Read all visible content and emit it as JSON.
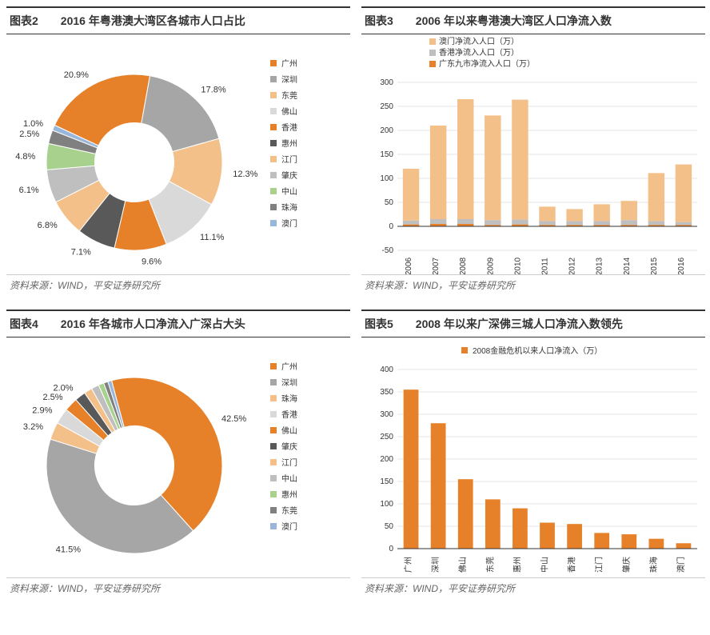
{
  "source_text": "资料来源：WIND，平安证券研究所",
  "chart2": {
    "title": "图表2　　2016 年粤港澳大湾区各城市人口占比",
    "type": "donut",
    "inner_radius_ratio": 0.45,
    "slices": [
      {
        "label": "广州",
        "value": 20.9,
        "color": "#e6812a",
        "text": "20.9%"
      },
      {
        "label": "深圳",
        "value": 17.8,
        "color": "#a6a6a6",
        "text": "17.8%"
      },
      {
        "label": "东莞",
        "value": 12.3,
        "color": "#f4c08a",
        "text": "12.3%"
      },
      {
        "label": "佛山",
        "value": 11.1,
        "color": "#d9d9d9",
        "text": "11.1%"
      },
      {
        "label": "香港",
        "value": 9.6,
        "color": "#e6812a",
        "text": "9.6%"
      },
      {
        "label": "惠州",
        "value": 7.1,
        "color": "#595959",
        "text": "7.1%"
      },
      {
        "label": "江门",
        "value": 6.8,
        "color": "#f4c08a",
        "text": "6.8%"
      },
      {
        "label": "肇庆",
        "value": 6.1,
        "color": "#bfbfbf",
        "text": "6.1%"
      },
      {
        "label": "中山",
        "value": 4.8,
        "color": "#a9d18e",
        "text": "4.8%"
      },
      {
        "label": "珠海",
        "value": 2.5,
        "color": "#808080",
        "text": "2.5%"
      },
      {
        "label": "澳门",
        "value": 1.0,
        "color": "#9ab7d9",
        "text": "1.0%"
      }
    ],
    "start_angle": -65
  },
  "chart3": {
    "title": "图表3　　2006 年以来粤港澳大湾区人口净流入数",
    "type": "stacked-bar",
    "ylim": [
      -50,
      300
    ],
    "ytick_step": 50,
    "background_color": "#ffffff",
    "grid_color": "#cccccc",
    "bar_width": 0.6,
    "series": [
      {
        "name": "澳门净流入人口（万）",
        "color": "#f4c08a"
      },
      {
        "name": "香港净流入人口（万）",
        "color": "#bfbfbf"
      },
      {
        "name": "广东九市净流入人口（万）",
        "color": "#e6812a"
      }
    ],
    "categories": [
      "2006",
      "2007",
      "2008",
      "2009",
      "2010",
      "2011",
      "2012",
      "2013",
      "2014",
      "2015",
      "2016"
    ],
    "stacks": [
      [
        108,
        8,
        4
      ],
      [
        195,
        10,
        5
      ],
      [
        250,
        10,
        5
      ],
      [
        218,
        10,
        3
      ],
      [
        250,
        10,
        4
      ],
      [
        30,
        8,
        3
      ],
      [
        25,
        8,
        3
      ],
      [
        35,
        8,
        3
      ],
      [
        40,
        10,
        3
      ],
      [
        100,
        8,
        3
      ],
      [
        120,
        6,
        3
      ]
    ]
  },
  "chart4": {
    "title": "图表4　　2016 年各城市人口净流入广深占大头",
    "type": "donut",
    "inner_radius_ratio": 0.45,
    "slices": [
      {
        "label": "广州",
        "value": 42.5,
        "color": "#e6812a",
        "text": "42.5%"
      },
      {
        "label": "深圳",
        "value": 41.5,
        "color": "#a6a6a6",
        "text": "41.5%"
      },
      {
        "label": "珠海",
        "value": 3.2,
        "color": "#f4c08a",
        "text": "3.2%"
      },
      {
        "label": "香港",
        "value": 2.9,
        "color": "#d9d9d9",
        "text": "2.9%"
      },
      {
        "label": "佛山",
        "value": 2.5,
        "color": "#e6812a",
        "text": "2.5%"
      },
      {
        "label": "肇庆",
        "value": 2.0,
        "color": "#595959",
        "text": "2.0%"
      },
      {
        "label": "江门",
        "value": 1.5,
        "color": "#f4c08a",
        "text": ""
      },
      {
        "label": "中山",
        "value": 1.4,
        "color": "#bfbfbf",
        "text": ""
      },
      {
        "label": "惠州",
        "value": 1.0,
        "color": "#a9d18e",
        "text": ""
      },
      {
        "label": "东莞",
        "value": 0.8,
        "color": "#808080",
        "text": ""
      },
      {
        "label": "澳门",
        "value": 0.7,
        "color": "#9ab7d9",
        "text": ""
      }
    ],
    "start_angle": -15
  },
  "chart5": {
    "title": "图表5　　2008 年以来广深佛三城人口净流入数领先",
    "type": "bar",
    "ylim": [
      0,
      400
    ],
    "ytick_step": 50,
    "background_color": "#ffffff",
    "grid_color": "#cccccc",
    "bar_width": 0.55,
    "bar_color": "#e6812a",
    "legend_label": "2008金融危机以来人口净流入（万）",
    "categories": [
      "广州",
      "深圳",
      "佛山",
      "东莞",
      "惠州",
      "中山",
      "香港",
      "江门",
      "肇庆",
      "珠海",
      "澳门"
    ],
    "values": [
      355,
      280,
      155,
      110,
      90,
      58,
      55,
      35,
      32,
      22,
      12
    ]
  }
}
